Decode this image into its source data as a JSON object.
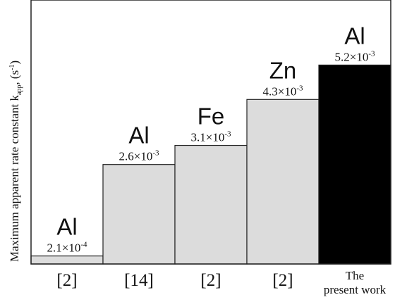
{
  "chart_data": {
    "type": "bar",
    "ylabel": "Maximum apparent rate constant k",
    "ylabel_subscript": "app",
    "ylabel_units": ", (s",
    "ylabel_units_sup": "-1",
    "ylabel_units_end": ")",
    "categories": [
      "[2]",
      "[14]",
      "[2]",
      "[2]",
      "The present work"
    ],
    "category_lines": [
      [
        "[2]"
      ],
      [
        "[14]"
      ],
      [
        "[2]"
      ],
      [
        "[2]"
      ],
      [
        "The",
        "present work"
      ]
    ],
    "metals": [
      "Al",
      "Al",
      "Fe",
      "Zn",
      "Al"
    ],
    "values": [
      0.00021,
      0.0026,
      0.0031,
      0.0043,
      0.0052
    ],
    "value_labels": [
      {
        "mantissa": "2.1×10",
        "exp": "-4"
      },
      {
        "mantissa": "2.6×10",
        "exp": "-3"
      },
      {
        "mantissa": "3.1×10",
        "exp": "-3"
      },
      {
        "mantissa": "4.3×10",
        "exp": "-3"
      },
      {
        "mantissa": "5.2×10",
        "exp": "-3"
      }
    ],
    "colors": [
      "#dcdcdc",
      "#dcdcdc",
      "#dcdcdc",
      "#dcdcdc",
      "#000000"
    ],
    "ylim": [
      0,
      0.0069
    ],
    "grid": false
  }
}
